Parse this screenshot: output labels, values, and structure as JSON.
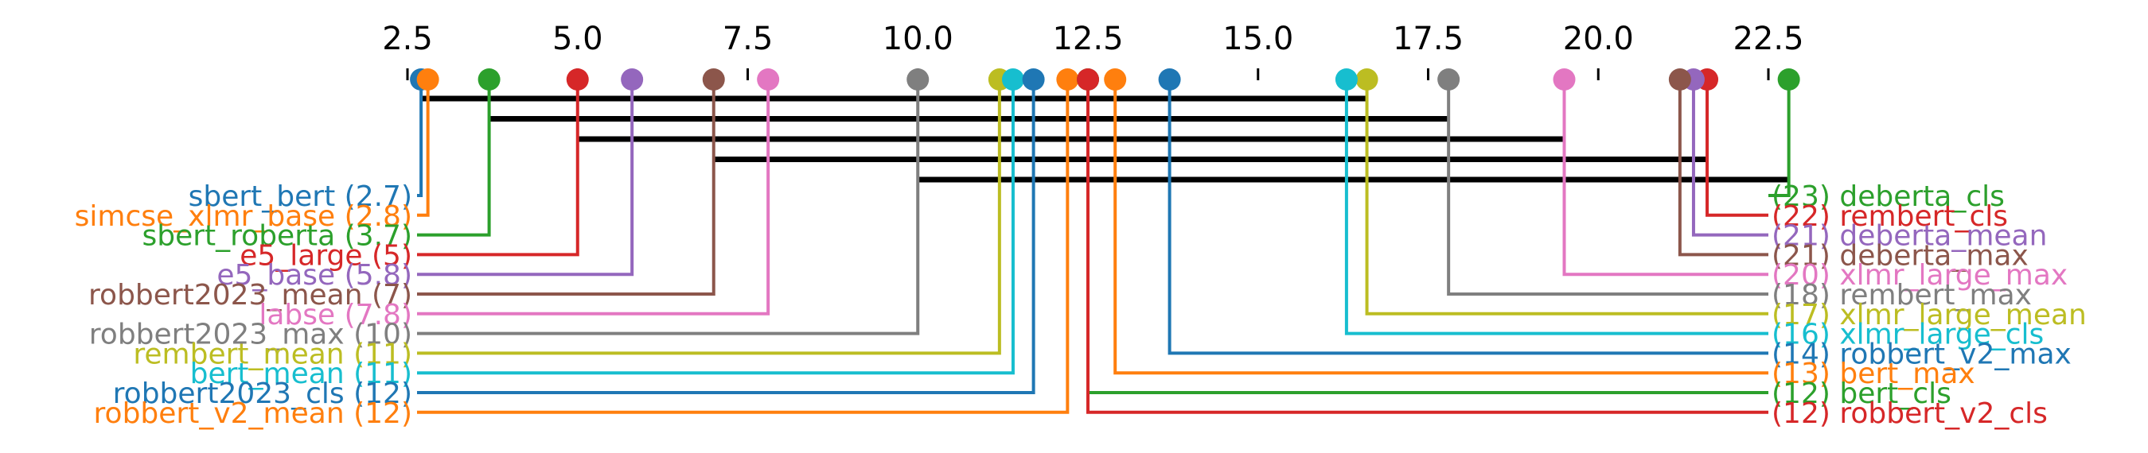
{
  "chart_data": {
    "type": "critical-difference-diagram",
    "title": "",
    "xlabel": "",
    "ylabel": "",
    "xlim": [
      2.5,
      23
    ],
    "ticks": [
      2.5,
      5.0,
      7.5,
      10.0,
      12.5,
      15.0,
      17.5,
      20.0,
      22.5
    ],
    "tick_labels": [
      "2.5",
      "5.0",
      "7.5",
      "10.0",
      "12.5",
      "15.0",
      "17.5",
      "20.0",
      "22.5"
    ],
    "left_items": [
      {
        "name": "sbert_bert",
        "rank": 2.7,
        "rank_label": "2.7",
        "color": "#1f77b4"
      },
      {
        "name": "simcse_xlmr_base",
        "rank": 2.8,
        "rank_label": "2.8",
        "color": "#ff7f0e"
      },
      {
        "name": "sbert_roberta",
        "rank": 3.7,
        "rank_label": "3.7",
        "color": "#2ca02c"
      },
      {
        "name": "e5_large",
        "rank": 5,
        "rank_label": "5",
        "color": "#d62728"
      },
      {
        "name": "e5_base",
        "rank": 5.8,
        "rank_label": "5.8",
        "color": "#9467bd"
      },
      {
        "name": "robbert2023_mean",
        "rank": 7,
        "rank_label": "7",
        "color": "#8c564b"
      },
      {
        "name": "labse",
        "rank": 7.8,
        "rank_label": "7.8",
        "color": "#e377c2"
      },
      {
        "name": "robbert2023_max",
        "rank": 10,
        "rank_label": "10",
        "color": "#7f7f7f"
      },
      {
        "name": "rembert_mean",
        "rank": 11.2,
        "rank_label": "11",
        "color": "#bcbd22"
      },
      {
        "name": "bert_mean",
        "rank": 11.4,
        "rank_label": "11",
        "color": "#17becf"
      },
      {
        "name": "robbert2023_cls",
        "rank": 11.7,
        "rank_label": "12",
        "color": "#1f77b4"
      },
      {
        "name": "robbert_v2_mean",
        "rank": 12.2,
        "rank_label": "12",
        "color": "#ff7f0e"
      }
    ],
    "right_items": [
      {
        "name": "deberta_cls",
        "rank": 22.8,
        "rank_label": "23",
        "color": "#2ca02c"
      },
      {
        "name": "rembert_cls",
        "rank": 21.6,
        "rank_label": "22",
        "color": "#d62728"
      },
      {
        "name": "deberta_mean",
        "rank": 21.4,
        "rank_label": "21",
        "color": "#9467bd"
      },
      {
        "name": "deberta_max",
        "rank": 21.2,
        "rank_label": "21",
        "color": "#8c564b"
      },
      {
        "name": "xlmr_large_max",
        "rank": 19.5,
        "rank_label": "20",
        "color": "#e377c2"
      },
      {
        "name": "rembert_max",
        "rank": 17.8,
        "rank_label": "18",
        "color": "#7f7f7f"
      },
      {
        "name": "xlmr_large_mean",
        "rank": 16.6,
        "rank_label": "17",
        "color": "#bcbd22"
      },
      {
        "name": "xlmr_large_cls",
        "rank": 16.3,
        "rank_label": "16",
        "color": "#17becf"
      },
      {
        "name": "robbert_v2_max",
        "rank": 13.7,
        "rank_label": "14",
        "color": "#1f77b4"
      },
      {
        "name": "bert_max",
        "rank": 12.9,
        "rank_label": "13",
        "color": "#ff7f0e"
      },
      {
        "name": "bert_cls",
        "rank": 12.5,
        "rank_label": "12",
        "color": "#2ca02c"
      },
      {
        "name": "robbert_v2_cls",
        "rank": 12.5,
        "rank_label": "12",
        "color": "#d62728"
      }
    ],
    "cliques": [
      [
        2.7,
        16.6
      ],
      [
        3.7,
        17.8
      ],
      [
        5,
        19.5
      ],
      [
        7,
        21.6
      ],
      [
        10,
        22.8
      ]
    ]
  }
}
